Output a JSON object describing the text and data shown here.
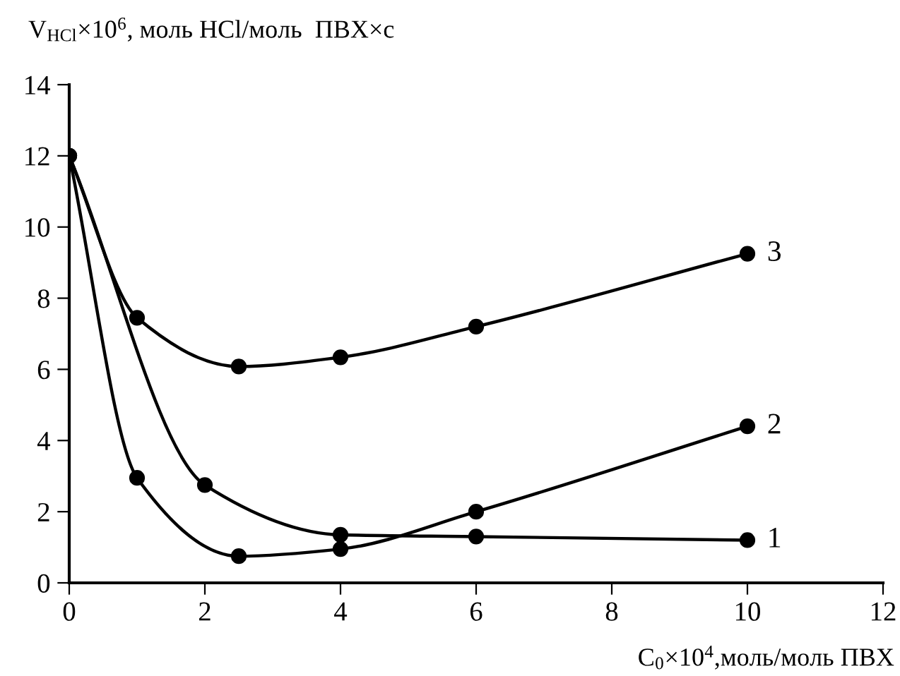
{
  "chart_data": {
    "type": "line",
    "xlabel": "C$_{0}$×10$^{4}$,моль/моль ПВХ",
    "ylabel": "V$_{HCl}$×10$^{6}$, моль HCl/моль  ПВХ×с",
    "xlim": [
      0,
      12
    ],
    "xticks": [
      0,
      2,
      4,
      6,
      8,
      10,
      12
    ],
    "ylim": [
      0,
      14
    ],
    "yticks": [
      0,
      2,
      4,
      6,
      8,
      10,
      12,
      14
    ],
    "grid": false,
    "legend": false,
    "marker": "circle",
    "line_style": "solid",
    "series": [
      {
        "name": "1",
        "color": "#000000",
        "x": [
          0,
          2,
          4,
          6,
          10
        ],
        "values": [
          12,
          2.75,
          1.35,
          1.3,
          1.2
        ]
      },
      {
        "name": "2",
        "color": "#000000",
        "x": [
          0,
          1,
          2.5,
          4,
          6,
          10
        ],
        "values": [
          12,
          2.95,
          0.75,
          0.95,
          2.0,
          4.4
        ]
      },
      {
        "name": "3",
        "color": "#000000",
        "x": [
          0,
          1,
          2.5,
          4,
          6,
          10
        ],
        "values": [
          12,
          7.45,
          6.08,
          6.34,
          7.2,
          9.25
        ]
      }
    ]
  }
}
